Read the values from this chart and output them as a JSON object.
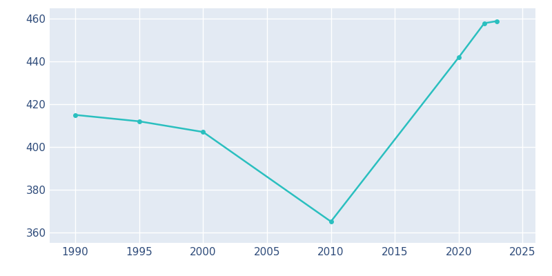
{
  "years": [
    1990,
    1995,
    2000,
    2010,
    2020,
    2022,
    2023
  ],
  "values": [
    415,
    412,
    407,
    365,
    442,
    458,
    459
  ],
  "line_color": "#2ABFBF",
  "marker": "o",
  "marker_size": 4,
  "linewidth": 1.8,
  "figure_facecolor": "#FFFFFF",
  "axes_facecolor": "#E3EAF3",
  "grid_color": "#FFFFFF",
  "tick_color": "#2E4B7A",
  "tick_labelsize": 11,
  "xlim": [
    1988,
    2026
  ],
  "ylim": [
    355,
    465
  ],
  "xticks": [
    1990,
    1995,
    2000,
    2005,
    2010,
    2015,
    2020,
    2025
  ],
  "yticks": [
    360,
    380,
    400,
    420,
    440,
    460
  ]
}
